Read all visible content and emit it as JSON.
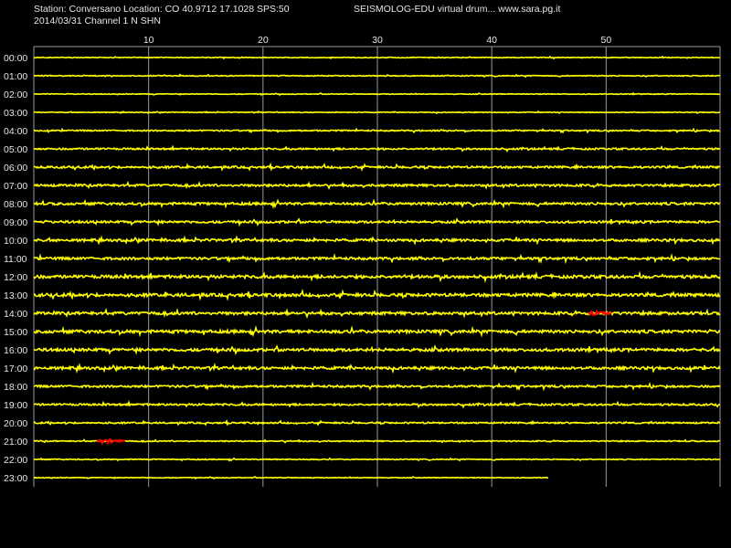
{
  "header": {
    "station_line": "Station: Conversano Location: CO 40.9712 17.1028 SPS:50",
    "date_line": "2014/03/31  Channel 1 N SHN",
    "brand_line": "SEISMOLOG-EDU virtual drum... www.sara.pg.it"
  },
  "chart_data": {
    "type": "line",
    "title": "",
    "xlabel": "",
    "ylabel": "",
    "x_unit_note": "minutes",
    "xlim": [
      0,
      60
    ],
    "x_ticks": [
      10,
      20,
      30,
      40,
      50
    ],
    "rows": [
      "00:00",
      "01:00",
      "02:00",
      "03:00",
      "04:00",
      "05:00",
      "06:00",
      "07:00",
      "08:00",
      "09:00",
      "10:00",
      "11:00",
      "12:00",
      "13:00",
      "14:00",
      "15:00",
      "16:00",
      "17:00",
      "18:00",
      "19:00",
      "20:00",
      "21:00",
      "22:00",
      "23:00"
    ],
    "last_row_end_minute": 45,
    "noise_level": [
      0.4,
      0.5,
      0.4,
      0.4,
      0.7,
      0.9,
      1.1,
      1.2,
      1.3,
      1.2,
      1.3,
      1.3,
      1.6,
      1.6,
      1.5,
      1.6,
      1.5,
      1.4,
      1.1,
      1.0,
      0.8,
      0.6,
      0.5,
      0.4
    ],
    "events": [
      {
        "row": "14:00",
        "start_minute": 48.5,
        "end_minute": 50.5,
        "color": "#ff0000"
      },
      {
        "row": "21:00",
        "start_minute": 5.5,
        "end_minute": 8.0,
        "color": "#ff0000"
      }
    ],
    "grid": true,
    "colors": {
      "background": "#000000",
      "trace": "#ffff00",
      "event": "#ff0000",
      "grid": "#9a9a9a",
      "text": "#e6e6e6"
    }
  }
}
